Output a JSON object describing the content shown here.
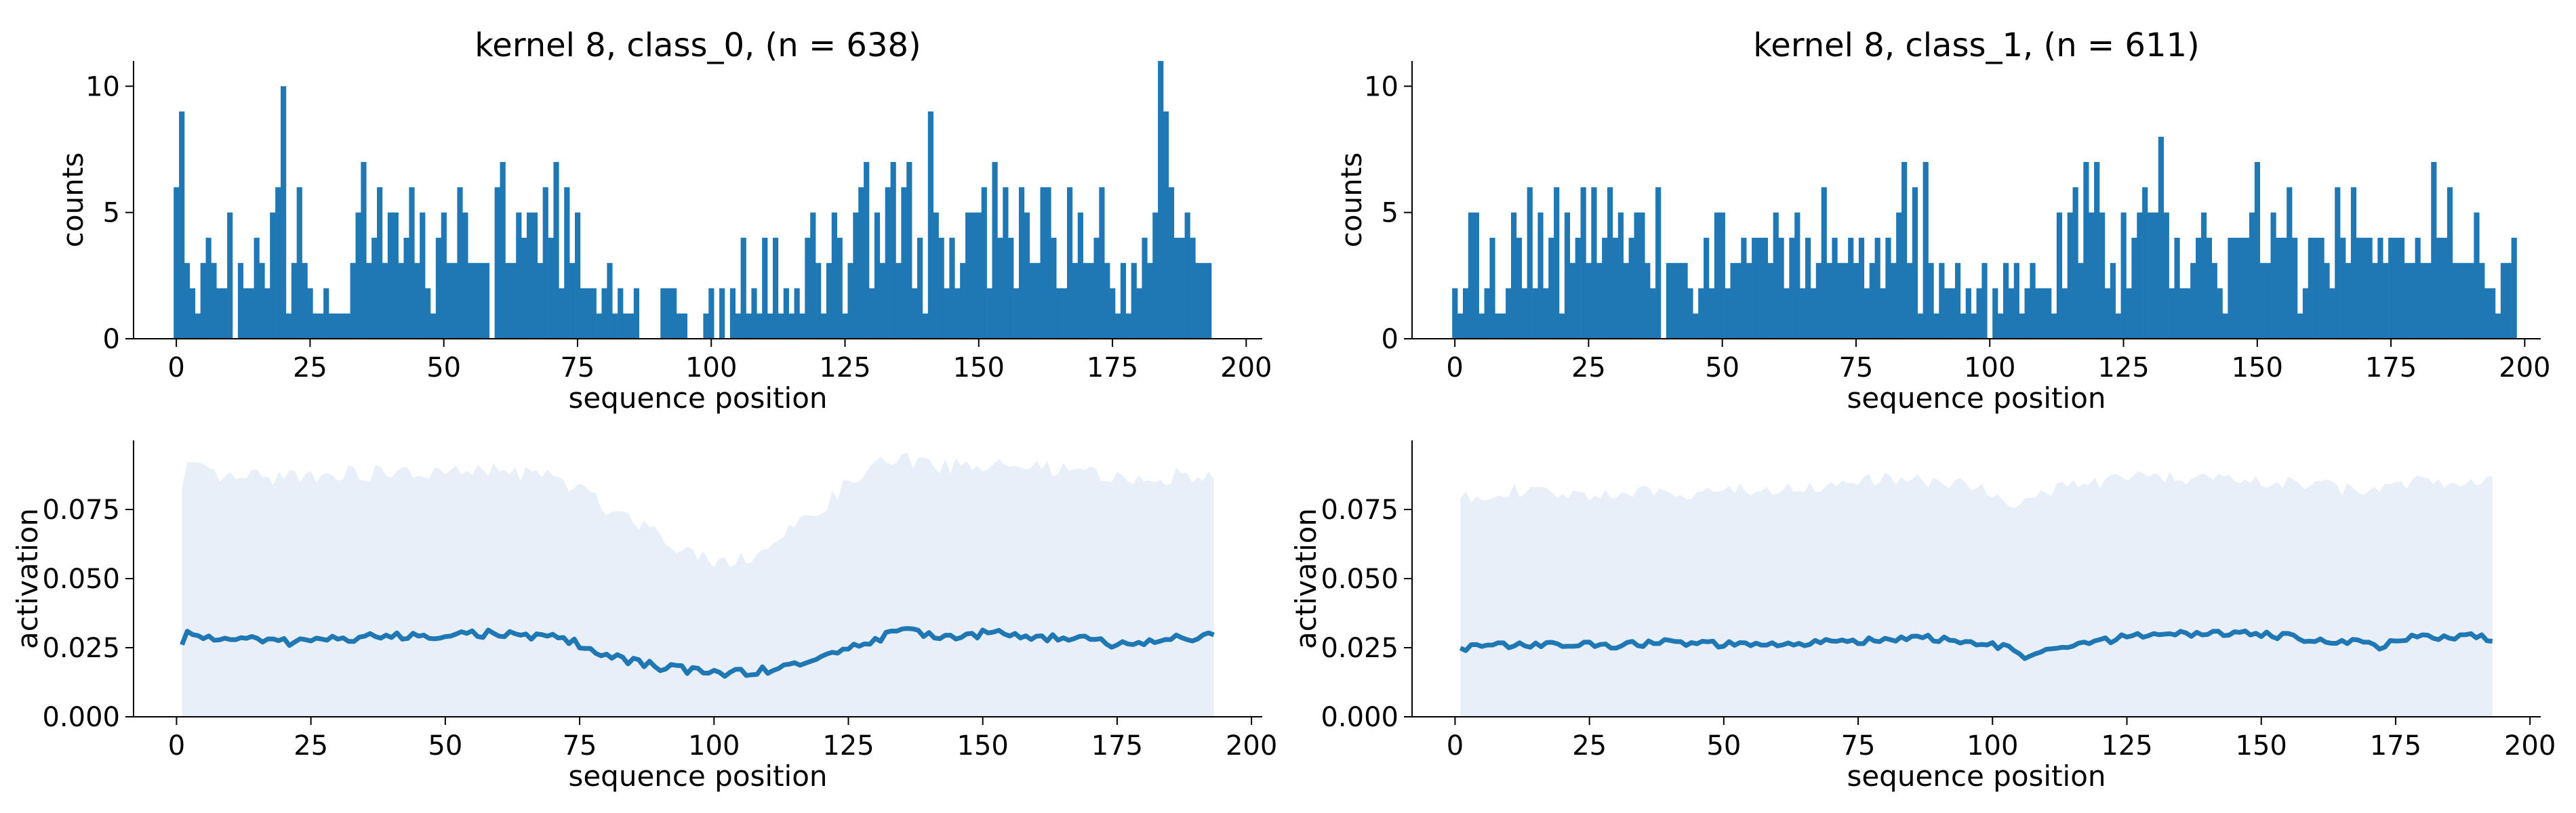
{
  "chart_data": [
    {
      "type": "bar",
      "title": "kernel 8, class_0, (n = 638)",
      "xlabel": "sequence position",
      "ylabel": "counts",
      "xlim": [
        -8,
        203
      ],
      "ylim": [
        0,
        11
      ],
      "xticks": [
        "0",
        "25",
        "50",
        "75",
        "100",
        "125",
        "150",
        "175",
        "200"
      ],
      "yticks": [
        "0",
        "5",
        "10"
      ],
      "color": "#1f77b4",
      "x_start": 0,
      "counts": [
        6,
        9,
        3,
        2,
        1,
        3,
        4,
        3,
        2,
        2,
        5,
        0,
        3,
        2,
        2,
        4,
        3,
        2,
        5,
        6,
        10,
        1,
        3,
        6,
        3,
        2,
        1,
        1,
        2,
        1,
        1,
        1,
        1,
        3,
        5,
        7,
        3,
        4,
        6,
        3,
        5,
        5,
        3,
        4,
        6,
        3,
        5,
        2,
        1,
        4,
        5,
        3,
        3,
        6,
        5,
        3,
        3,
        3,
        3,
        0,
        6,
        7,
        3,
        3,
        5,
        4,
        5,
        5,
        3,
        6,
        4,
        7,
        2,
        6,
        3,
        5,
        2,
        2,
        2,
        1,
        2,
        3,
        1,
        2,
        1,
        1,
        2,
        0,
        0,
        0,
        0,
        2,
        2,
        2,
        1,
        1,
        0,
        0,
        0,
        1,
        2,
        0,
        2,
        0,
        2,
        1,
        4,
        1,
        2,
        1,
        4,
        1,
        4,
        1,
        2,
        1,
        2,
        1,
        4,
        5,
        3,
        1,
        3,
        5,
        4,
        1,
        3,
        5,
        6,
        7,
        2,
        5,
        3,
        6,
        7,
        3,
        6,
        7,
        2,
        4,
        1,
        9,
        5,
        4,
        2,
        4,
        2,
        3,
        5,
        5,
        5,
        6,
        2,
        7,
        4,
        6,
        4,
        2,
        6,
        5,
        3,
        3,
        6,
        6,
        4,
        2,
        2,
        6,
        3,
        5,
        3,
        3,
        4,
        6,
        3,
        2,
        1,
        3,
        1,
        3,
        2,
        4,
        3,
        5,
        11,
        9,
        6,
        4,
        4,
        5,
        4,
        3,
        3,
        3
      ]
    },
    {
      "type": "bar",
      "title": "kernel 8, class_1, (n = 611)",
      "xlabel": "sequence position",
      "ylabel": "counts",
      "xlim": [
        -8,
        203
      ],
      "ylim": [
        0,
        11
      ],
      "xticks": [
        "0",
        "25",
        "50",
        "75",
        "100",
        "125",
        "150",
        "175",
        "200"
      ],
      "yticks": [
        "0",
        "5",
        "10"
      ],
      "color": "#1f77b4",
      "x_start": 0,
      "counts": [
        2,
        1,
        2,
        5,
        5,
        1,
        2,
        4,
        1,
        1,
        2,
        5,
        4,
        2,
        6,
        2,
        5,
        2,
        4,
        6,
        1,
        5,
        3,
        4,
        6,
        3,
        6,
        3,
        4,
        6,
        4,
        5,
        3,
        4,
        5,
        5,
        3,
        2,
        6,
        0,
        3,
        3,
        3,
        3,
        2,
        1,
        2,
        4,
        2,
        5,
        5,
        2,
        3,
        3,
        4,
        3,
        4,
        4,
        4,
        3,
        5,
        4,
        2,
        4,
        5,
        2,
        4,
        2,
        3,
        6,
        3,
        4,
        3,
        3,
        4,
        3,
        4,
        2,
        3,
        4,
        2,
        4,
        3,
        5,
        7,
        3,
        6,
        1,
        7,
        3,
        1,
        3,
        2,
        2,
        3,
        1,
        2,
        1,
        2,
        3,
        0,
        2,
        1,
        3,
        2,
        3,
        1,
        2,
        3,
        2,
        2,
        2,
        1,
        5,
        2,
        5,
        6,
        3,
        7,
        5,
        7,
        5,
        2,
        3,
        1,
        5,
        2,
        4,
        5,
        6,
        5,
        5,
        8,
        5,
        2,
        4,
        2,
        2,
        3,
        4,
        5,
        4,
        3,
        2,
        1,
        4,
        4,
        4,
        4,
        5,
        7,
        3,
        3,
        5,
        4,
        4,
        6,
        4,
        1,
        2,
        4,
        4,
        4,
        3,
        2,
        6,
        4,
        3,
        6,
        4,
        4,
        4,
        3,
        4,
        3,
        4,
        4,
        4,
        3,
        3,
        4,
        3,
        3,
        7,
        4,
        4,
        6,
        3,
        3,
        3,
        3,
        5,
        3,
        2,
        2,
        1,
        3,
        3,
        4
      ]
    },
    {
      "type": "area",
      "title": "",
      "xlabel": "sequence position",
      "ylabel": "activation",
      "xlim": [
        -8,
        202
      ],
      "ylim": [
        0,
        0.1
      ],
      "xticks": [
        "0",
        "25",
        "50",
        "75",
        "100",
        "125",
        "150",
        "175",
        "200"
      ],
      "yticks": [
        "0.000",
        "0.025",
        "0.050",
        "0.075"
      ],
      "line_color": "#1f77b4",
      "band_color": "#e8eff8",
      "x_start": 1,
      "x_end": 193,
      "mean_anchors": [
        [
          1,
          0.026
        ],
        [
          2,
          0.03
        ],
        [
          5,
          0.029
        ],
        [
          10,
          0.028
        ],
        [
          15,
          0.028
        ],
        [
          20,
          0.027
        ],
        [
          25,
          0.028
        ],
        [
          30,
          0.028
        ],
        [
          35,
          0.029
        ],
        [
          40,
          0.029
        ],
        [
          45,
          0.029
        ],
        [
          50,
          0.03
        ],
        [
          55,
          0.03
        ],
        [
          60,
          0.03
        ],
        [
          65,
          0.029
        ],
        [
          70,
          0.029
        ],
        [
          74,
          0.027
        ],
        [
          76,
          0.025
        ],
        [
          78,
          0.023
        ],
        [
          80,
          0.022
        ],
        [
          85,
          0.02
        ],
        [
          90,
          0.018
        ],
        [
          95,
          0.017
        ],
        [
          100,
          0.016
        ],
        [
          105,
          0.016
        ],
        [
          110,
          0.017
        ],
        [
          115,
          0.019
        ],
        [
          120,
          0.021
        ],
        [
          125,
          0.025
        ],
        [
          130,
          0.028
        ],
        [
          135,
          0.031
        ],
        [
          140,
          0.03
        ],
        [
          145,
          0.029
        ],
        [
          150,
          0.03
        ],
        [
          155,
          0.03
        ],
        [
          160,
          0.029
        ],
        [
          165,
          0.028
        ],
        [
          170,
          0.028
        ],
        [
          175,
          0.026
        ],
        [
          180,
          0.027
        ],
        [
          185,
          0.028
        ],
        [
          190,
          0.029
        ],
        [
          193,
          0.029
        ]
      ],
      "upper_anchors": [
        [
          1,
          0.082
        ],
        [
          2,
          0.09
        ],
        [
          10,
          0.086
        ],
        [
          20,
          0.087
        ],
        [
          30,
          0.088
        ],
        [
          40,
          0.088
        ],
        [
          50,
          0.088
        ],
        [
          60,
          0.089
        ],
        [
          65,
          0.088
        ],
        [
          70,
          0.087
        ],
        [
          75,
          0.082
        ],
        [
          80,
          0.076
        ],
        [
          85,
          0.072
        ],
        [
          90,
          0.066
        ],
        [
          95,
          0.06
        ],
        [
          100,
          0.057
        ],
        [
          105,
          0.057
        ],
        [
          110,
          0.061
        ],
        [
          115,
          0.068
        ],
        [
          120,
          0.076
        ],
        [
          125,
          0.084
        ],
        [
          130,
          0.091
        ],
        [
          135,
          0.093
        ],
        [
          140,
          0.091
        ],
        [
          150,
          0.091
        ],
        [
          160,
          0.09
        ],
        [
          170,
          0.088
        ],
        [
          175,
          0.086
        ],
        [
          180,
          0.086
        ],
        [
          190,
          0.088
        ],
        [
          193,
          0.089
        ]
      ],
      "wiggle": 0.0014
    },
    {
      "type": "area",
      "title": "",
      "xlabel": "sequence position",
      "ylabel": "activation",
      "xlim": [
        -8,
        202
      ],
      "ylim": [
        0,
        0.1
      ],
      "xticks": [
        "0",
        "25",
        "50",
        "75",
        "100",
        "125",
        "150",
        "175",
        "200"
      ],
      "yticks": [
        "0.000",
        "0.025",
        "0.050",
        "0.075"
      ],
      "line_color": "#1f77b4",
      "band_color": "#e8eff8",
      "x_start": 1,
      "x_end": 193,
      "mean_anchors": [
        [
          1,
          0.025
        ],
        [
          10,
          0.026
        ],
        [
          20,
          0.026
        ],
        [
          30,
          0.026
        ],
        [
          40,
          0.027
        ],
        [
          50,
          0.026
        ],
        [
          60,
          0.026
        ],
        [
          70,
          0.027
        ],
        [
          80,
          0.028
        ],
        [
          85,
          0.029
        ],
        [
          90,
          0.028
        ],
        [
          100,
          0.026
        ],
        [
          104,
          0.024
        ],
        [
          107,
          0.021
        ],
        [
          110,
          0.024
        ],
        [
          115,
          0.026
        ],
        [
          120,
          0.027
        ],
        [
          125,
          0.029
        ],
        [
          130,
          0.03
        ],
        [
          140,
          0.03
        ],
        [
          150,
          0.03
        ],
        [
          160,
          0.028
        ],
        [
          170,
          0.027
        ],
        [
          172,
          0.025
        ],
        [
          175,
          0.028
        ],
        [
          180,
          0.029
        ],
        [
          190,
          0.029
        ],
        [
          193,
          0.028
        ]
      ],
      "upper_anchors": [
        [
          1,
          0.079
        ],
        [
          10,
          0.082
        ],
        [
          20,
          0.08
        ],
        [
          30,
          0.081
        ],
        [
          40,
          0.081
        ],
        [
          50,
          0.082
        ],
        [
          60,
          0.082
        ],
        [
          70,
          0.084
        ],
        [
          80,
          0.086
        ],
        [
          90,
          0.085
        ],
        [
          100,
          0.082
        ],
        [
          105,
          0.076
        ],
        [
          110,
          0.082
        ],
        [
          120,
          0.085
        ],
        [
          130,
          0.087
        ],
        [
          140,
          0.086
        ],
        [
          150,
          0.085
        ],
        [
          160,
          0.084
        ],
        [
          170,
          0.081
        ],
        [
          175,
          0.085
        ],
        [
          180,
          0.085
        ],
        [
          190,
          0.086
        ],
        [
          193,
          0.086
        ]
      ],
      "wiggle": 0.0012
    }
  ]
}
